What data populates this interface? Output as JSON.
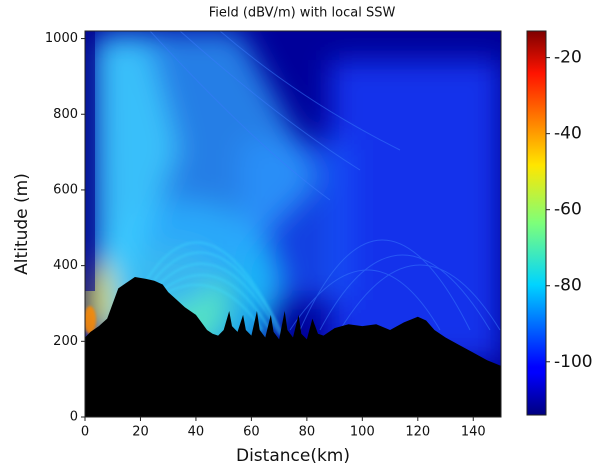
{
  "chart_data": {
    "type": "heatmap",
    "title": "Field (dBV/m) with local SSW",
    "x_label": "Distance(km)",
    "y_label": "Altitude (m)",
    "xlim": [
      0,
      150
    ],
    "ylim": [
      0,
      1020
    ],
    "xticks": [
      0,
      20,
      40,
      60,
      80,
      100,
      120,
      140
    ],
    "yticks": [
      0,
      200,
      400,
      600,
      800,
      1000
    ],
    "colormap": "jet",
    "clim": [
      -114,
      -13
    ],
    "cticks": [
      -20,
      -40,
      -60,
      -80,
      -100
    ],
    "terrain_color": "#000000",
    "x": [
      0,
      2,
      5,
      8,
      10,
      12,
      15,
      18,
      22,
      25,
      28,
      30,
      33,
      36,
      40,
      42,
      44,
      46,
      48,
      50,
      52,
      53,
      55,
      57,
      58,
      60,
      62,
      63,
      65,
      67,
      68,
      70,
      72,
      73,
      75,
      77,
      78,
      80,
      82,
      84,
      86,
      90,
      95,
      100,
      105,
      110,
      115,
      120,
      123,
      126,
      130,
      135,
      140,
      145,
      150
    ],
    "values": [
      210,
      225,
      240,
      260,
      300,
      340,
      355,
      370,
      365,
      360,
      350,
      330,
      310,
      290,
      270,
      250,
      230,
      220,
      215,
      230,
      280,
      240,
      225,
      270,
      230,
      215,
      280,
      230,
      210,
      270,
      225,
      205,
      280,
      230,
      210,
      270,
      220,
      205,
      260,
      220,
      215,
      235,
      245,
      240,
      245,
      230,
      250,
      265,
      255,
      230,
      210,
      190,
      170,
      150,
      135
    ]
  }
}
